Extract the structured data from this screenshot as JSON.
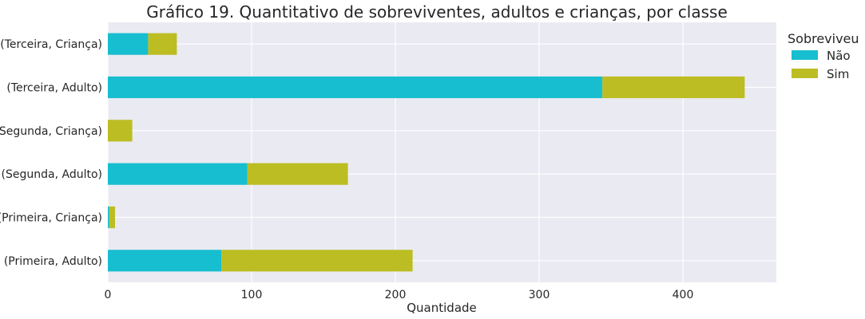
{
  "chart_data": {
    "type": "bar",
    "orientation": "horizontal",
    "stacked": true,
    "title": "Gráfico 19. Quantitativo de sobreviventes, adultos e crianças, por classe",
    "xlabel": "Quantidade",
    "ylabel": "",
    "xlim": [
      0,
      465
    ],
    "xticks": [
      0,
      100,
      200,
      300,
      400
    ],
    "grid": true,
    "categories": [
      "(Primeira, Adulto)",
      "(Primeira, Criança)",
      "(Segunda, Adulto)",
      "(Segunda, Criança)",
      "(Terceira, Adulto)",
      "(Terceira, Criança)"
    ],
    "series": [
      {
        "name": "Não",
        "color": "#17becf",
        "values": [
          79,
          1,
          97,
          0,
          344,
          28
        ]
      },
      {
        "name": "Sim",
        "color": "#bcbd22",
        "values": [
          133,
          4,
          70,
          17,
          99,
          20
        ]
      }
    ],
    "legend": {
      "title": "Sobreviveu",
      "placement": "outside-top-right"
    }
  }
}
